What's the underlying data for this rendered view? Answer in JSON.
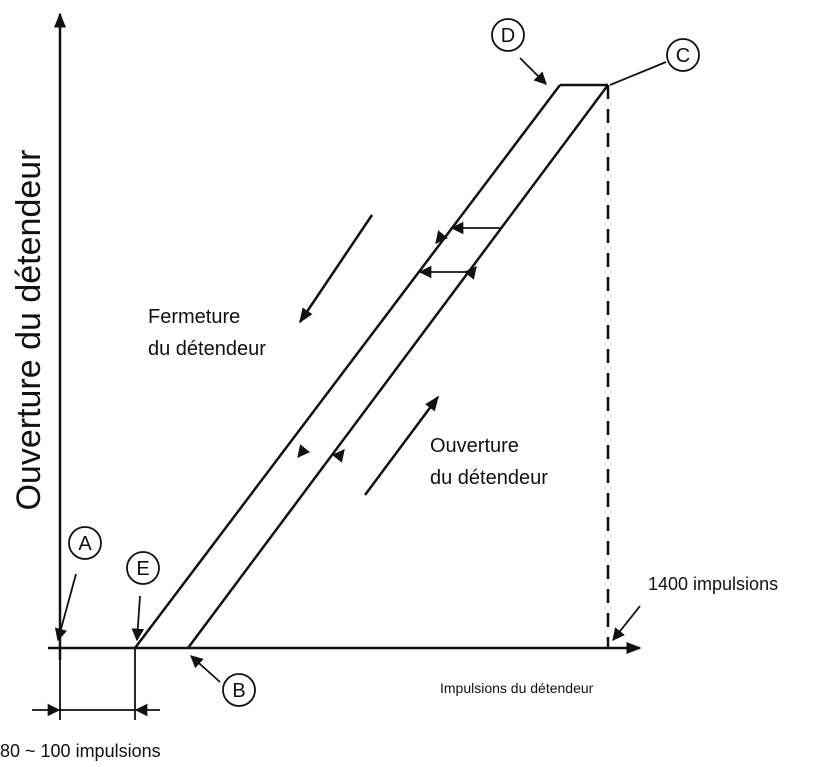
{
  "diagram": {
    "y_axis_label": "Ouverture du détendeur",
    "x_axis_label": "Impulsions du détendeur",
    "closing_label": [
      "Fermeture",
      "du détendeur"
    ],
    "opening_label": [
      "Ouverture",
      "du détendeur"
    ],
    "points": {
      "A": "A",
      "B": "B",
      "C": "C",
      "D": "D",
      "E": "E"
    },
    "max_pulses_label": "1400 impulsions",
    "dead_band_label": "80 ~ 100 impulsions"
  }
}
